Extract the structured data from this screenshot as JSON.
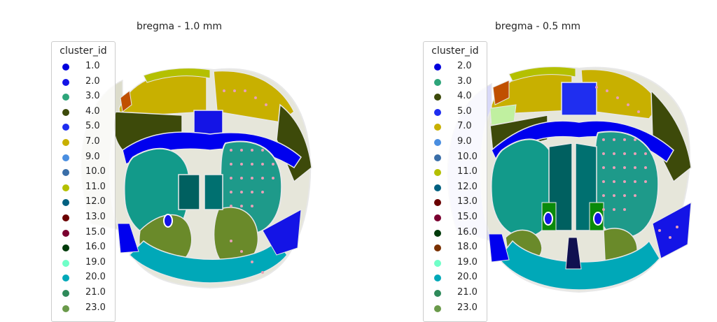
{
  "panels": [
    {
      "title": "bregma - 1.0 mm",
      "legend": {
        "title": "cluster_id",
        "items": [
          {
            "label": "1.0",
            "color": "#0000dd"
          },
          {
            "label": "2.0",
            "color": "#1414e6"
          },
          {
            "label": "3.0",
            "color": "#2ea57a"
          },
          {
            "label": "4.0",
            "color": "#3d4a0a"
          },
          {
            "label": "5.0",
            "color": "#1f2ef0"
          },
          {
            "label": "7.0",
            "color": "#c8b000"
          },
          {
            "label": "9.0",
            "color": "#4a8ee0"
          },
          {
            "label": "10.0",
            "color": "#3a6ea8"
          },
          {
            "label": "11.0",
            "color": "#b4c000"
          },
          {
            "label": "12.0",
            "color": "#006080"
          },
          {
            "label": "13.0",
            "color": "#6a0000"
          },
          {
            "label": "15.0",
            "color": "#7a0030"
          },
          {
            "label": "16.0",
            "color": "#003a0a"
          },
          {
            "label": "19.0",
            "color": "#70ffc8"
          },
          {
            "label": "20.0",
            "color": "#00a8b8"
          },
          {
            "label": "21.0",
            "color": "#2e8a5a"
          },
          {
            "label": "23.0",
            "color": "#6a9a4a"
          }
        ]
      }
    },
    {
      "title": "bregma - 0.5 mm",
      "legend": {
        "title": "cluster_id",
        "items": [
          {
            "label": "2.0",
            "color": "#0000dd"
          },
          {
            "label": "3.0",
            "color": "#2ea57a"
          },
          {
            "label": "4.0",
            "color": "#3d4a0a"
          },
          {
            "label": "5.0",
            "color": "#1f2ef0"
          },
          {
            "label": "7.0",
            "color": "#c8b000"
          },
          {
            "label": "9.0",
            "color": "#4a8ee0"
          },
          {
            "label": "10.0",
            "color": "#3a6ea8"
          },
          {
            "label": "11.0",
            "color": "#b4c000"
          },
          {
            "label": "12.0",
            "color": "#006080"
          },
          {
            "label": "13.0",
            "color": "#6a0000"
          },
          {
            "label": "15.0",
            "color": "#7a0030"
          },
          {
            "label": "16.0",
            "color": "#003a0a"
          },
          {
            "label": "18.0",
            "color": "#7a3000"
          },
          {
            "label": "19.0",
            "color": "#70ffc8"
          },
          {
            "label": "20.0",
            "color": "#00a8b8"
          },
          {
            "label": "21.0",
            "color": "#2e8a5a"
          },
          {
            "label": "23.0",
            "color": "#6a9a4a"
          }
        ]
      }
    }
  ]
}
